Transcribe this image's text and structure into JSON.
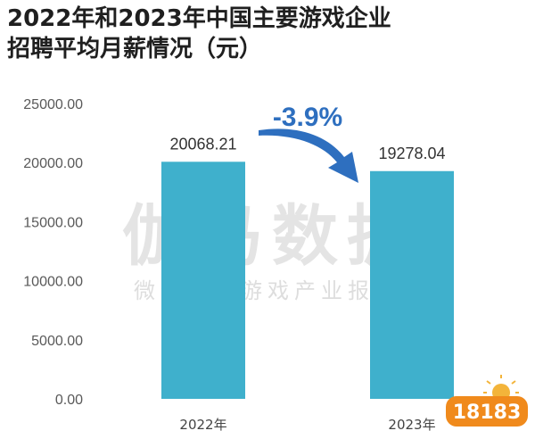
{
  "title": {
    "line1": "2022年和2023年中国主要游戏企业",
    "line2": "招聘平均月薪情况（元）"
  },
  "watermark": {
    "main": "伽马数据",
    "sub": "微信号：游戏产业报告"
  },
  "logo": {
    "text": "18183",
    "icon": "sun-mascot-logo"
  },
  "annotation": {
    "text": "-3.9%",
    "icon": "curved-arrow-icon"
  },
  "colors": {
    "bar": "#3fb0cc",
    "arrow": "#2e6fbf",
    "text": "#333333"
  },
  "chart_data": {
    "type": "bar",
    "categories": [
      "2022年",
      "2023年"
    ],
    "values": [
      20068.21,
      19278.04
    ],
    "value_labels": [
      "20068.21",
      "19278.04"
    ],
    "yticks": [
      "0.00",
      "5000.00",
      "10000.00",
      "15000.00",
      "20000.00",
      "25000.00"
    ],
    "ylim": [
      0,
      25000
    ],
    "grid": false,
    "title": "2022年和2023年中国主要游戏企业招聘平均月薪情况（元）",
    "xlabel": "",
    "ylabel": ""
  }
}
